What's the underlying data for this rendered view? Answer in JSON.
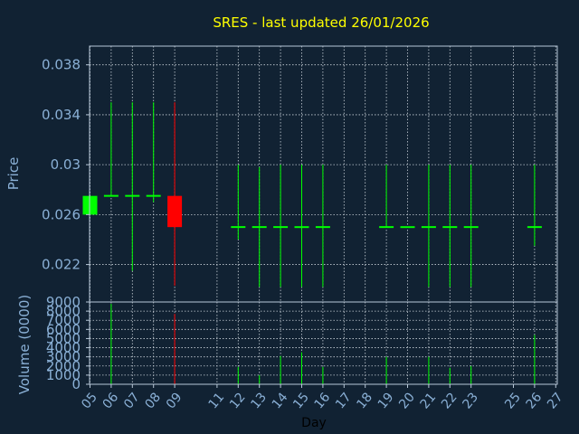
{
  "chart_data": {
    "type": "candlestick",
    "title": "SRES - last updated 26/01/2026",
    "price_panel": {
      "ylabel": "Price",
      "ylim": [
        0.019,
        0.0395
      ],
      "yticks": [
        0.022,
        0.026,
        0.03,
        0.034,
        0.038
      ],
      "ytick_labels": [
        "0.022",
        "0.026",
        "0.03",
        "0.034",
        "0.038"
      ]
    },
    "volume_panel": {
      "ylabel": "Volume (0000)",
      "ylim": [
        0,
        9000
      ],
      "yticks": [
        0,
        1000,
        2000,
        3000,
        4000,
        5000,
        6000,
        7000,
        8000,
        9000
      ],
      "ytick_labels": [
        "0",
        "1000",
        "2000",
        "3000",
        "4000",
        "5000",
        "6000",
        "7000",
        "8000",
        "9000"
      ]
    },
    "xlabel": "Day",
    "x_ticks": [
      "05",
      "06",
      "07",
      "08",
      "09",
      "11",
      "12",
      "13",
      "14",
      "15",
      "16",
      "17",
      "18",
      "19",
      "20",
      "21",
      "22",
      "23",
      "25",
      "26",
      "27"
    ],
    "grid": true,
    "candles": [
      {
        "day": "05",
        "open": 0.026,
        "high": 0.0275,
        "low": 0.026,
        "close": 0.0275,
        "volume": 0
      },
      {
        "day": "06",
        "open": 0.0275,
        "high": 0.035,
        "low": 0.0275,
        "close": 0.0275,
        "volume": 8800
      },
      {
        "day": "07",
        "open": 0.0275,
        "high": 0.035,
        "low": 0.0215,
        "close": 0.0275,
        "volume": 0
      },
      {
        "day": "08",
        "open": 0.0275,
        "high": 0.035,
        "low": 0.027,
        "close": 0.0275,
        "volume": 0
      },
      {
        "day": "09",
        "open": 0.0275,
        "high": 0.035,
        "low": 0.0203,
        "close": 0.025,
        "volume": 7700
      },
      {
        "day": "12",
        "open": 0.025,
        "high": 0.03,
        "low": 0.024,
        "close": 0.025,
        "volume": 1900
      },
      {
        "day": "13",
        "open": 0.025,
        "high": 0.0298,
        "low": 0.0202,
        "close": 0.025,
        "volume": 1000
      },
      {
        "day": "14",
        "open": 0.025,
        "high": 0.03,
        "low": 0.0202,
        "close": 0.025,
        "volume": 3100
      },
      {
        "day": "15",
        "open": 0.025,
        "high": 0.03,
        "low": 0.0202,
        "close": 0.025,
        "volume": 3500
      },
      {
        "day": "16",
        "open": 0.025,
        "high": 0.03,
        "low": 0.0202,
        "close": 0.025,
        "volume": 1900
      },
      {
        "day": "19",
        "open": 0.025,
        "high": 0.03,
        "low": 0.025,
        "close": 0.025,
        "volume": 3000
      },
      {
        "day": "20",
        "open": 0.025,
        "high": 0.025,
        "low": 0.025,
        "close": 0.025,
        "volume": 0
      },
      {
        "day": "21",
        "open": 0.025,
        "high": 0.03,
        "low": 0.0202,
        "close": 0.025,
        "volume": 3000
      },
      {
        "day": "22",
        "open": 0.025,
        "high": 0.03,
        "low": 0.0202,
        "close": 0.025,
        "volume": 1800
      },
      {
        "day": "23",
        "open": 0.025,
        "high": 0.03,
        "low": 0.0202,
        "close": 0.025,
        "volume": 2000
      },
      {
        "day": "26",
        "open": 0.025,
        "high": 0.03,
        "low": 0.0235,
        "close": 0.025,
        "volume": 5400
      }
    ]
  },
  "colors": {
    "background": "#112233",
    "title": "#ffff00",
    "text": "#8ab0d6",
    "axis": "#b8c8d8",
    "grid": "#c8d0d8",
    "up": "#00ff00",
    "down": "#ff0000"
  }
}
